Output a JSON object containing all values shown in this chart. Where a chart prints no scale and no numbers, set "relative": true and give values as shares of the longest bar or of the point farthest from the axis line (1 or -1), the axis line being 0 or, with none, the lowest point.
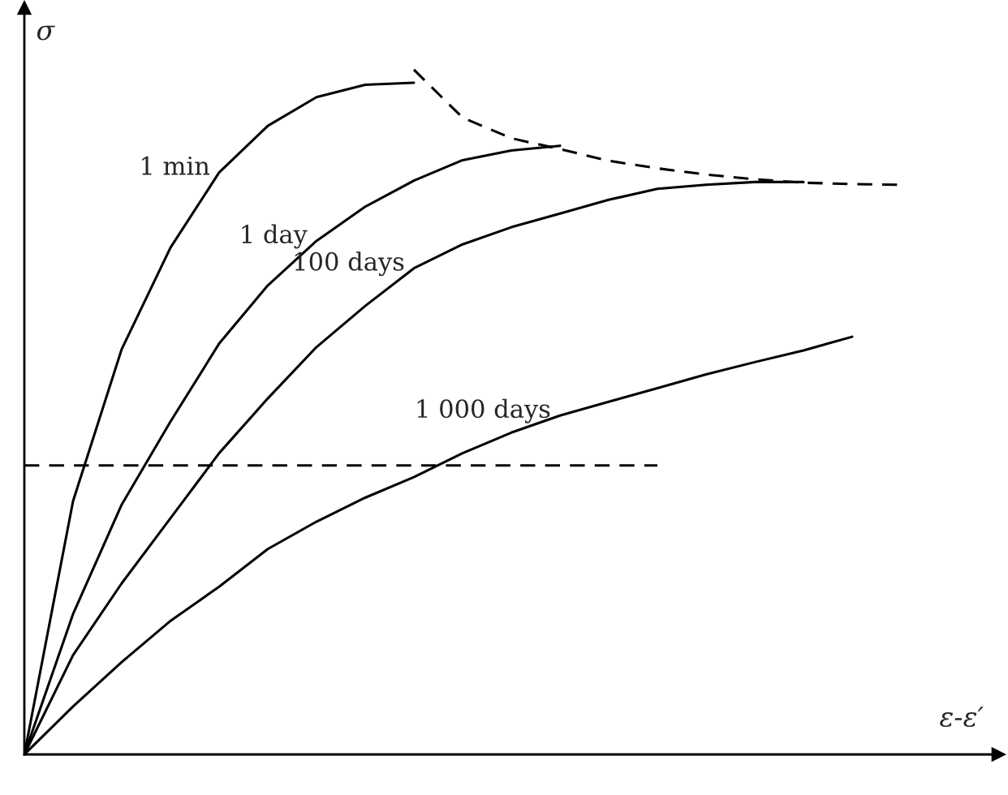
{
  "chart_data": {
    "type": "line",
    "relative": true,
    "xlabel": "ε-ε′",
    "ylabel": "σ",
    "legend": false,
    "marker": "none",
    "categories": [
      null,
      null,
      null,
      null,
      null,
      null,
      null,
      null,
      null,
      null,
      null,
      null,
      null,
      null,
      null,
      null,
      null,
      null,
      null,
      null
    ],
    "series": [
      {
        "name": "1 min",
        "color": "#000000",
        "line_style": "solid",
        "values": [
          0,
          0.37,
          0.592,
          0.74,
          0.85,
          0.918,
          0.96,
          0.978,
          0.981,
          null,
          null,
          null,
          null,
          null,
          null,
          null,
          null,
          null,
          null,
          null
        ]
      },
      {
        "name": "1 day",
        "color": "#000000",
        "line_style": "solid",
        "values": [
          0,
          0.205,
          0.365,
          0.486,
          0.6,
          0.685,
          0.75,
          0.8,
          0.838,
          0.868,
          0.882,
          0.889,
          null,
          null,
          null,
          null,
          null,
          null,
          null,
          null
        ]
      },
      {
        "name": "100 days",
        "color": "#000000",
        "line_style": "solid",
        "values": [
          0,
          0.145,
          0.25,
          0.345,
          0.44,
          0.52,
          0.595,
          0.655,
          0.71,
          0.745,
          0.77,
          0.79,
          0.81,
          0.826,
          0.832,
          0.836,
          0.836,
          null,
          null,
          null
        ]
      },
      {
        "name": "1 000 days",
        "color": "#000000",
        "line_style": "solid",
        "values": [
          0,
          0.07,
          0.135,
          0.195,
          0.245,
          0.3,
          0.34,
          0.375,
          0.405,
          0.44,
          0.47,
          0.495,
          0.515,
          0.535,
          0.555,
          0.573,
          0.59,
          0.61,
          null,
          null
        ]
      },
      {
        "color": "#000000",
        "line_style": "dashed",
        "values": [
          null,
          null,
          null,
          null,
          null,
          null,
          null,
          null,
          1,
          0.93,
          0.9,
          0.884,
          0.867,
          0.856,
          0.847,
          0.84,
          0.835,
          0.833,
          0.832,
          null
        ]
      },
      {
        "color": "#000000",
        "line_style": "dashed",
        "values": [
          0.422,
          0.422,
          0.422,
          0.422,
          0.422,
          0.422,
          0.422,
          0.422,
          0.422,
          0.422,
          0.422,
          0.422,
          0.422,
          0.422,
          null,
          null,
          null,
          null,
          null,
          null
        ]
      }
    ]
  }
}
